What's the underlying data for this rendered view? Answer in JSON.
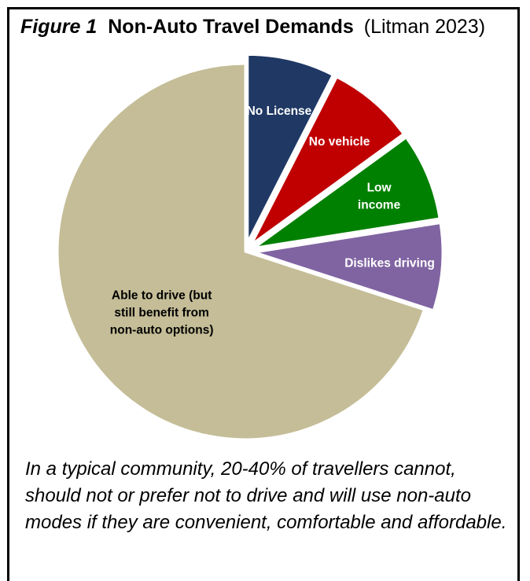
{
  "figure": {
    "number_label": "Figure 1",
    "title": "Non-Auto Travel Demands",
    "source": "(Litman 2023)"
  },
  "chart_data": {
    "type": "pie",
    "title": "Non-Auto Travel Demands",
    "start_angle_deg": 0,
    "direction": "clockwise",
    "slices": [
      {
        "label": "No License",
        "lines": [
          "No License"
        ],
        "value": 7.5,
        "color": "#1f3864",
        "text_color": "#ffffff",
        "exploded": true
      },
      {
        "label": "No vehicle",
        "lines": [
          "No vehicle"
        ],
        "value": 7.5,
        "color": "#c00000",
        "text_color": "#ffffff",
        "exploded": true
      },
      {
        "label": "Low income",
        "lines": [
          "Low",
          "income"
        ],
        "value": 7.5,
        "color": "#008000",
        "text_color": "#ffffff",
        "exploded": true
      },
      {
        "label": "Dislikes driving",
        "lines": [
          "Dislikes driving"
        ],
        "value": 7.5,
        "color": "#8064a2",
        "text_color": "#ffffff",
        "exploded": true
      },
      {
        "label": "Able to drive (but still benefit from non-auto options)",
        "lines": [
          "Able to drive (but",
          "still benefit from",
          "non-auto options)"
        ],
        "value": 70,
        "color": "#c4bd97",
        "text_color": "#000000",
        "exploded": false
      }
    ]
  },
  "caption": "In a typical community, 20-40% of travellers cannot, should not or prefer not to drive and will use non-auto modes if they are convenient, comfortable and affordable."
}
